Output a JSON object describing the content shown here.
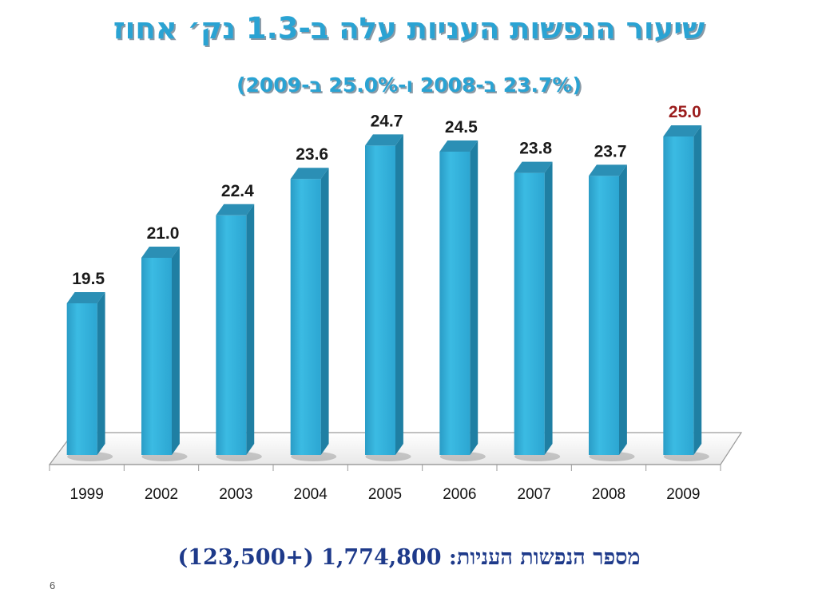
{
  "slide": {
    "title": "שיעור הנפשות העניות עלה ב-1.3 נק׳ אחוז",
    "subtitle": "(23.7% ב-2008 ו-25.0% ב-2009)",
    "footer": "מספר הנפשות העניות: 1,774,800 (+123,500)",
    "page_number": "6"
  },
  "colors": {
    "bar": "#35b4dd",
    "label": "#1a1a1a",
    "highlight_label": "#9b1c1c",
    "title": "#2aa3d3"
  },
  "chart_data": {
    "type": "bar",
    "categories": [
      "1999",
      "2002",
      "2003",
      "2004",
      "2005",
      "2006",
      "2007",
      "2008",
      "2009"
    ],
    "values": [
      19.5,
      21.0,
      22.4,
      23.6,
      24.7,
      24.5,
      23.8,
      23.7,
      25.0
    ],
    "value_labels": [
      "19.5",
      "21.0",
      "22.4",
      "23.6",
      "24.7",
      "24.5",
      "23.8",
      "23.7",
      "25.0"
    ],
    "highlight_index": 8,
    "ylim": [
      15,
      27
    ],
    "grid": false,
    "style": "3d"
  }
}
